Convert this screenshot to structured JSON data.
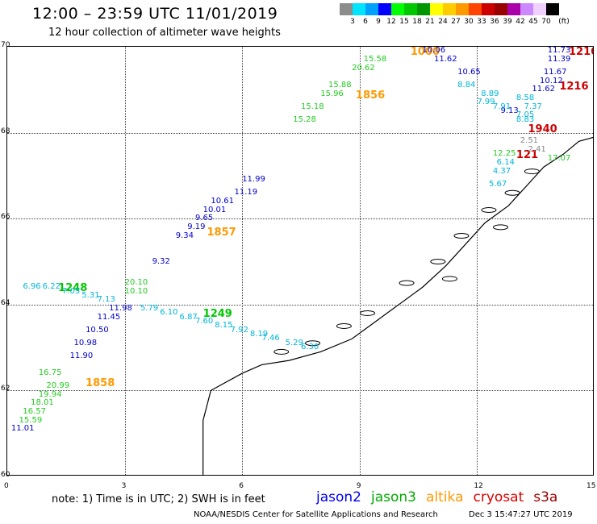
{
  "header": {
    "title": "12:00 – 23:59 UTC 11/01/2019",
    "subtitle": "12 hour collection of altimeter wave heights"
  },
  "color_scale": {
    "unit": "(ft)",
    "labels": [
      "3",
      "6",
      "9",
      "12",
      "15",
      "18",
      "21",
      "24",
      "27",
      "30",
      "33",
      "36",
      "39",
      "42",
      "45",
      "70"
    ],
    "colors": [
      "#8c8c8c",
      "#00e5ff",
      "#00a0ff",
      "#0000ff",
      "#00ff00",
      "#00c800",
      "#009600",
      "#ffff00",
      "#ffcc00",
      "#ff9900",
      "#ff4400",
      "#cc0000",
      "#990000",
      "#aa00aa",
      "#cc88ff",
      "#f0d0ff",
      "#000000"
    ]
  },
  "axes": {
    "lat_labels": [
      "70",
      "68",
      "66",
      "64",
      "62",
      "60"
    ],
    "lon_labels": [
      "0",
      "3",
      "6",
      "9",
      "12",
      "15"
    ]
  },
  "chart_data": {
    "type": "map",
    "x_range": [
      0,
      15
    ],
    "y_range": [
      60,
      70
    ],
    "grid": true,
    "tracks": [
      {
        "name": "altika",
        "color": "#ff9900",
        "labels": [
          {
            "text": "1858",
            "lon": 2.0,
            "lat": 62.2
          },
          {
            "text": "1857",
            "lon": 5.1,
            "lat": 65.7
          },
          {
            "text": "1856",
            "lon": 8.9,
            "lat": 68.9
          },
          {
            "text": "1000",
            "lon": 10.3,
            "lat": 69.9
          }
        ]
      },
      {
        "name": "jason3_descending",
        "color": "#00c800",
        "labels": [
          {
            "text": "1248",
            "lon": 1.3,
            "lat": 64.4
          },
          {
            "text": "1249",
            "lon": 5.0,
            "lat": 63.8
          }
        ]
      },
      {
        "name": "cryosat",
        "color": "#cc0000",
        "labels": [
          {
            "text": "1216",
            "lon": 14.6,
            "lat": 69.9
          },
          {
            "text": "1216",
            "lon": 14.1,
            "lat": 69.1
          },
          {
            "text": "1940",
            "lon": 13.3,
            "lat": 68.1
          },
          {
            "text": "121",
            "lon": 13.0,
            "lat": 67.5
          }
        ]
      },
      {
        "name": "jason2_values",
        "color": "#0000cc",
        "labels": [
          {
            "text": "10.06",
            "lon": 10.6,
            "lat": 69.9
          },
          {
            "text": "11.62",
            "lon": 10.9,
            "lat": 69.7
          },
          {
            "text": "10.65",
            "lon": 11.5,
            "lat": 69.4
          },
          {
            "text": "11.73",
            "lon": 13.8,
            "lat": 69.9
          },
          {
            "text": "11.39",
            "lon": 13.8,
            "lat": 69.7
          },
          {
            "text": "11.67",
            "lon": 13.7,
            "lat": 69.4
          },
          {
            "text": "10.12",
            "lon": 13.6,
            "lat": 69.2
          },
          {
            "text": "11.62",
            "lon": 13.4,
            "lat": 69.0
          },
          {
            "text": "9.13",
            "lon": 12.6,
            "lat": 68.5
          },
          {
            "text": "11.99",
            "lon": 6.0,
            "lat": 66.9
          },
          {
            "text": "11.19",
            "lon": 5.8,
            "lat": 66.6
          },
          {
            "text": "10.61",
            "lon": 5.2,
            "lat": 66.4
          },
          {
            "text": "10.01",
            "lon": 5.0,
            "lat": 66.2
          },
          {
            "text": "9.65",
            "lon": 4.8,
            "lat": 66.0
          },
          {
            "text": "9.19",
            "lon": 4.6,
            "lat": 65.8
          },
          {
            "text": "9.34",
            "lon": 4.3,
            "lat": 65.6
          },
          {
            "text": "9.32",
            "lon": 3.7,
            "lat": 65.0
          },
          {
            "text": "11.98",
            "lon": 2.6,
            "lat": 63.9
          },
          {
            "text": "11.45",
            "lon": 2.3,
            "lat": 63.7
          },
          {
            "text": "10.50",
            "lon": 2.0,
            "lat": 63.4
          },
          {
            "text": "10.98",
            "lon": 1.7,
            "lat": 63.1
          },
          {
            "text": "11.90",
            "lon": 1.6,
            "lat": 62.8
          },
          {
            "text": "11.01",
            "lon": 0.1,
            "lat": 61.1
          }
        ]
      },
      {
        "name": "cyan_values",
        "color": "#00b5d8",
        "labels": [
          {
            "text": "8.84",
            "lon": 11.5,
            "lat": 69.1
          },
          {
            "text": "8.89",
            "lon": 12.1,
            "lat": 68.9
          },
          {
            "text": "7.99",
            "lon": 12.0,
            "lat": 68.7
          },
          {
            "text": "7.91",
            "lon": 12.4,
            "lat": 68.6
          },
          {
            "text": "8.58",
            "lon": 13.0,
            "lat": 68.8
          },
          {
            "text": "7.37",
            "lon": 13.2,
            "lat": 68.6
          },
          {
            "text": "7.05",
            "lon": 13.0,
            "lat": 68.4
          },
          {
            "text": "8.83",
            "lon": 13.0,
            "lat": 68.3
          },
          {
            "text": "6.14",
            "lon": 12.5,
            "lat": 67.3
          },
          {
            "text": "4.37",
            "lon": 12.4,
            "lat": 67.1
          },
          {
            "text": "5.67",
            "lon": 12.3,
            "lat": 66.8
          },
          {
            "text": "6.96",
            "lon": 0.4,
            "lat": 64.4
          },
          {
            "text": "6.22",
            "lon": 0.9,
            "lat": 64.4
          },
          {
            "text": "7.05",
            "lon": 1.4,
            "lat": 64.3
          },
          {
            "text": "5.31",
            "lon": 1.9,
            "lat": 64.2
          },
          {
            "text": "7.13",
            "lon": 2.3,
            "lat": 64.1
          },
          {
            "text": "5.79",
            "lon": 3.4,
            "lat": 63.9
          },
          {
            "text": "6.10",
            "lon": 3.9,
            "lat": 63.8
          },
          {
            "text": "6.87",
            "lon": 4.4,
            "lat": 63.7
          },
          {
            "text": "7.60",
            "lon": 4.8,
            "lat": 63.6
          },
          {
            "text": "8.15",
            "lon": 5.3,
            "lat": 63.5
          },
          {
            "text": "7.92",
            "lon": 5.7,
            "lat": 63.4
          },
          {
            "text": "8.19",
            "lon": 6.2,
            "lat": 63.3
          },
          {
            "text": "7.46",
            "lon": 6.5,
            "lat": 63.2
          },
          {
            "text": "5.29",
            "lon": 7.1,
            "lat": 63.1
          },
          {
            "text": "6.30",
            "lon": 7.5,
            "lat": 63.0
          }
        ]
      },
      {
        "name": "gray_values",
        "color": "#888888",
        "labels": [
          {
            "text": "2.51",
            "lon": 13.1,
            "lat": 67.8
          },
          {
            "text": "2.41",
            "lon": 13.3,
            "lat": 67.6
          }
        ]
      },
      {
        "name": "green_values",
        "color": "#22cc22",
        "labels": [
          {
            "text": "15.58",
            "lon": 9.1,
            "lat": 69.7
          },
          {
            "text": "20.62",
            "lon": 8.8,
            "lat": 69.5
          },
          {
            "text": "15.88",
            "lon": 8.2,
            "lat": 69.1
          },
          {
            "text": "15.96",
            "lon": 8.0,
            "lat": 68.9
          },
          {
            "text": "15.18",
            "lon": 7.5,
            "lat": 68.6
          },
          {
            "text": "15.28",
            "lon": 7.3,
            "lat": 68.3
          },
          {
            "text": "12.25",
            "lon": 12.4,
            "lat": 67.5
          },
          {
            "text": "17.07",
            "lon": 13.8,
            "lat": 67.4
          },
          {
            "text": "16.75",
            "lon": 0.8,
            "lat": 62.4
          },
          {
            "text": "20.99",
            "lon": 1.0,
            "lat": 62.1
          },
          {
            "text": "19.94",
            "lon": 0.8,
            "lat": 61.9
          },
          {
            "text": "18.01",
            "lon": 0.6,
            "lat": 61.7
          },
          {
            "text": "16.57",
            "lon": 0.4,
            "lat": 61.5
          },
          {
            "text": "15.59",
            "lon": 0.3,
            "lat": 61.3
          },
          {
            "text": "20.10",
            "lon": 3.0,
            "lat": 64.5
          },
          {
            "text": "10.10",
            "lon": 3.0,
            "lat": 64.3
          }
        ]
      }
    ]
  },
  "footer": {
    "note": "note:  1) Time is in UTC;  2) SWH is in feet",
    "legend": [
      {
        "name": "jason2",
        "color": "#0000ee"
      },
      {
        "name": "jason3",
        "color": "#00aa00"
      },
      {
        "name": "altika",
        "color": "#ff9900"
      },
      {
        "name": "cryosat",
        "color": "#dd0000"
      },
      {
        "name": "s3a",
        "color": "#990000"
      }
    ],
    "credit": "NOAA/NESDIS Center for Satellite Applications and Research",
    "timestamp": "Dec  3 15:47:27 UTC 2019"
  }
}
